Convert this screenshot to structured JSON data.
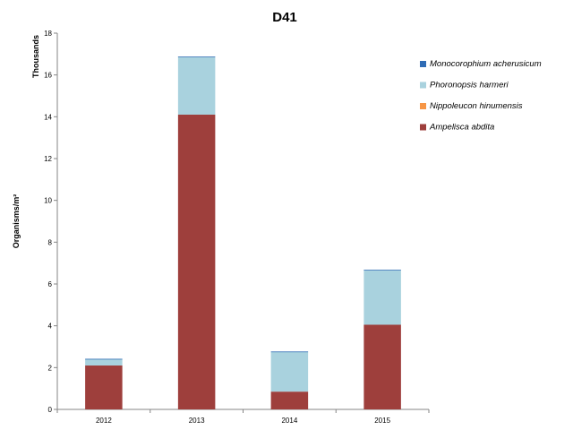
{
  "chart_data": {
    "type": "bar",
    "stacked": true,
    "title": "D41",
    "xlabel": "",
    "ylabel": "Organisms/m²",
    "yunit_label": "Thousands",
    "categories": [
      "2012",
      "2013",
      "2014",
      "2015"
    ],
    "ylim": [
      0,
      18
    ],
    "yticks": [
      0,
      2,
      4,
      6,
      8,
      10,
      12,
      14,
      16,
      18
    ],
    "grid": false,
    "legend_position": "right",
    "series": [
      {
        "name": "Ampelisca abdita",
        "color": "#9e3f3c",
        "values": [
          2.1,
          14.1,
          0.85,
          4.05
        ]
      },
      {
        "name": "Nippoleucon hinumensis",
        "color": "#f79646",
        "values": [
          0.0,
          0.0,
          0.0,
          0.0
        ]
      },
      {
        "name": "Phoronopsis harmeri",
        "color": "#a9d2de",
        "values": [
          0.3,
          2.75,
          1.9,
          2.6
        ]
      },
      {
        "name": "Monocorophium acherusicum",
        "color": "#2f6cb5",
        "values": [
          0.02,
          0.03,
          0.02,
          0.03
        ]
      }
    ]
  }
}
